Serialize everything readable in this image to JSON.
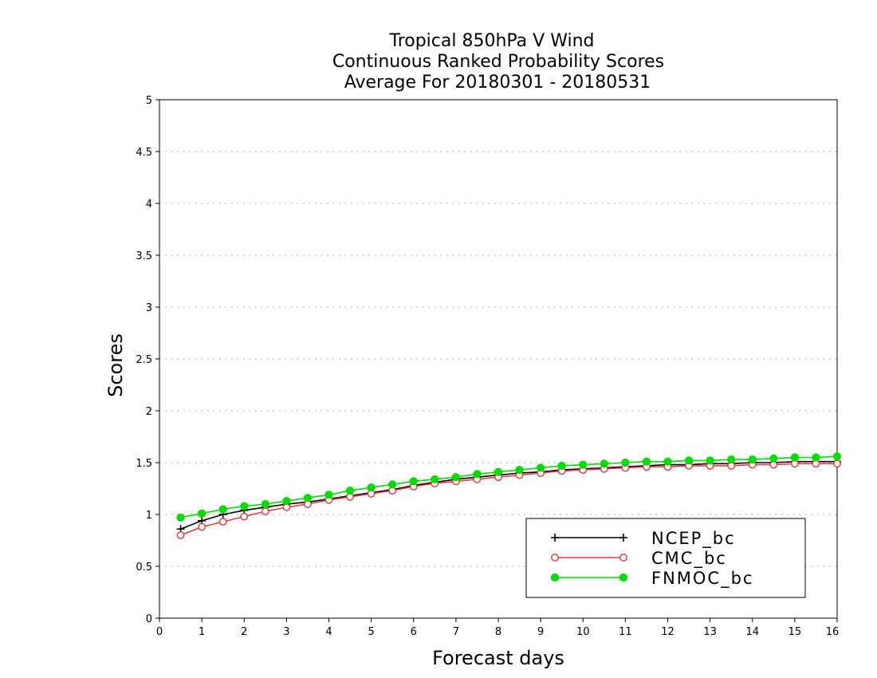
{
  "chart_data": {
    "type": "line",
    "title": [
      "Tropical 850hPa V Wind",
      "Continuous Ranked Probability Scores",
      "Average For 20180301 - 20180531"
    ],
    "xlabel": "Forecast days",
    "ylabel": "Scores",
    "xlim": [
      0,
      16
    ],
    "ylim": [
      0,
      5
    ],
    "x_ticks": [
      0,
      1,
      2,
      3,
      4,
      5,
      6,
      7,
      8,
      9,
      10,
      11,
      12,
      13,
      14,
      15,
      16
    ],
    "y_ticks": [
      0,
      0.5,
      1,
      1.5,
      2,
      2.5,
      3,
      3.5,
      4,
      4.5,
      5
    ],
    "y_tick_labels": [
      "0",
      "0.5",
      "1",
      "1.5",
      "2",
      "2.5",
      "3",
      "3.5",
      "4",
      "4.5",
      "5"
    ],
    "grid": "horizontal dotted",
    "legend_position": "bottom-right",
    "x": [
      0.5,
      1,
      1.5,
      2,
      2.5,
      3,
      3.5,
      4,
      4.5,
      5,
      5.5,
      6,
      6.5,
      7,
      7.5,
      8,
      8.5,
      9,
      9.5,
      10,
      10.5,
      11,
      11.5,
      12,
      12.5,
      13,
      13.5,
      14,
      14.5,
      15,
      15.5,
      16
    ],
    "series": [
      {
        "name": "NCEP_bc",
        "color": "#000000",
        "marker": "plus",
        "values": [
          0.86,
          0.94,
          1.0,
          1.04,
          1.07,
          1.1,
          1.12,
          1.15,
          1.18,
          1.21,
          1.24,
          1.28,
          1.31,
          1.34,
          1.36,
          1.38,
          1.4,
          1.41,
          1.43,
          1.44,
          1.45,
          1.46,
          1.47,
          1.48,
          1.48,
          1.49,
          1.49,
          1.5,
          1.5,
          1.51,
          1.51,
          1.51
        ]
      },
      {
        "name": "CMC_bc",
        "color": "#e04040",
        "marker": "open-circle",
        "values": [
          0.8,
          0.88,
          0.93,
          0.98,
          1.03,
          1.07,
          1.1,
          1.14,
          1.17,
          1.2,
          1.23,
          1.27,
          1.3,
          1.32,
          1.34,
          1.36,
          1.38,
          1.4,
          1.42,
          1.43,
          1.44,
          1.45,
          1.46,
          1.46,
          1.47,
          1.47,
          1.47,
          1.48,
          1.48,
          1.49,
          1.49,
          1.49
        ]
      },
      {
        "name": "FNMOC_bc",
        "color": "#00dd00",
        "marker": "filled-circle",
        "values": [
          0.97,
          1.01,
          1.05,
          1.08,
          1.1,
          1.13,
          1.16,
          1.19,
          1.23,
          1.26,
          1.29,
          1.32,
          1.34,
          1.36,
          1.39,
          1.41,
          1.43,
          1.45,
          1.47,
          1.48,
          1.49,
          1.5,
          1.51,
          1.51,
          1.52,
          1.52,
          1.53,
          1.53,
          1.54,
          1.55,
          1.55,
          1.56
        ]
      }
    ]
  }
}
